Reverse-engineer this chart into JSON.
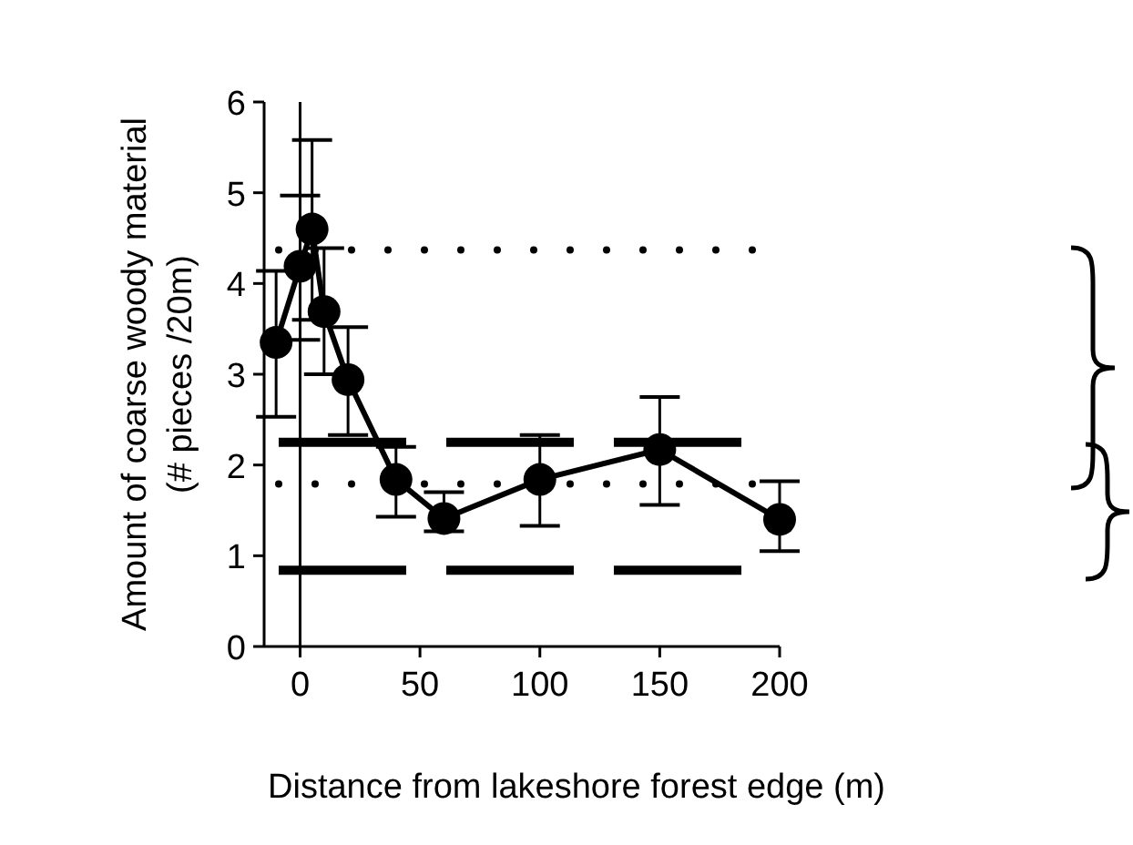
{
  "chart_data": {
    "type": "line",
    "xlabel": "Distance from lakeshore forest edge (m)",
    "ylabel": "Amount of coarse woody material (# pieces /20m)",
    "x": [
      -10,
      0,
      5,
      10,
      20,
      40,
      60,
      100,
      150,
      200
    ],
    "series": [
      {
        "color": "#000000",
        "values": [
          3.35,
          4.19,
          4.6,
          3.69,
          2.94,
          1.84,
          1.41,
          1.84,
          2.17,
          1.4
        ],
        "errors": [
          [
            2.53,
            4.14
          ],
          [
            3.38,
            4.97
          ],
          [
            3.6,
            5.58
          ],
          [
            3.0,
            4.39
          ],
          [
            2.33,
            3.52
          ],
          [
            1.43,
            2.2
          ],
          [
            1.27,
            1.7
          ],
          [
            1.33,
            2.33
          ],
          [
            1.56,
            2.75
          ],
          [
            1.05,
            1.82
          ]
        ]
      }
    ],
    "xlim": [
      -15,
      200
    ],
    "xticks": [
      0,
      50,
      100,
      150,
      200
    ],
    "ylim": [
      0,
      6
    ],
    "yticks": [
      0,
      1,
      2,
      3,
      4,
      5,
      6
    ],
    "marker": "circle",
    "line_style": "solid",
    "grid": false,
    "ref_lines": [
      {
        "axis": "x",
        "value": 0,
        "line_style": "solid",
        "color": "#000000"
      },
      {
        "axis": "y",
        "value": 4.37,
        "line_style": "dotted",
        "color": "#000000"
      },
      {
        "axis": "y",
        "value": 1.79,
        "line_style": "dotted",
        "color": "#000000"
      },
      {
        "axis": "y",
        "value": 2.25,
        "line_style": "dashed",
        "color": "#000000"
      },
      {
        "axis": "y",
        "value": 0.84,
        "line_style": "dashed",
        "color": "#000000"
      }
    ]
  }
}
